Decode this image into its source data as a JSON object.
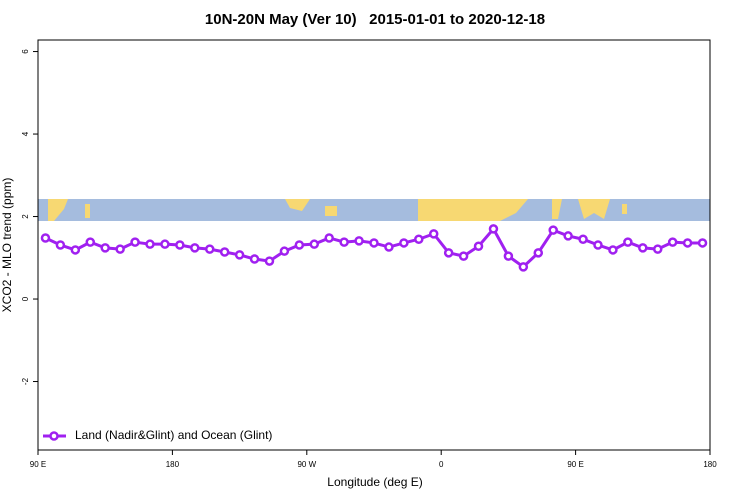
{
  "chart_data": {
    "type": "line",
    "title": "10N-20N May (Ver 10)   2015-01-01 to 2020-12-18",
    "x_label": "Longitude (deg E)",
    "y_label": "XCO2 - MLO trend (ppm)",
    "xlim": [
      90,
      540
    ],
    "ylim": [
      -3.66,
      6.28
    ],
    "xticks": [
      {
        "value": 90,
        "label": "90 E"
      },
      180,
      {
        "value": 270,
        "label": "90 W"
      },
      {
        "value": 360,
        "label": "0"
      },
      {
        "value": 450,
        "label": "90 E"
      },
      {
        "value": 540,
        "label": "180"
      }
    ],
    "yticks": [
      -2,
      0,
      2,
      4,
      6
    ],
    "legend": "bottom-left",
    "x": [
      95,
      105,
      115,
      125,
      135,
      145,
      155,
      165,
      175,
      185,
      195,
      205,
      215,
      225,
      235,
      245,
      255,
      265,
      275,
      285,
      295,
      305,
      315,
      325,
      335,
      345,
      355,
      365,
      375,
      385,
      395,
      405,
      415,
      425,
      435,
      445,
      455,
      465,
      475,
      485,
      495,
      505,
      515,
      525,
      535
    ],
    "series": [
      {
        "name": "Land (Nadir&Glint) and Ocean (Glint)",
        "color": "#a020f0",
        "values": [
          1.48,
          1.31,
          1.19,
          1.38,
          1.24,
          1.21,
          1.38,
          1.33,
          1.33,
          1.31,
          1.24,
          1.21,
          1.14,
          1.07,
          0.97,
          0.92,
          1.16,
          1.31,
          1.33,
          1.48,
          1.38,
          1.41,
          1.36,
          1.26,
          1.36,
          1.45,
          1.58,
          1.12,
          1.04,
          1.28,
          1.7,
          1.04,
          0.78,
          1.12,
          1.67,
          1.53,
          1.45,
          1.31,
          1.19,
          1.38,
          1.24,
          1.21,
          1.38,
          1.36,
          1.36
        ]
      }
    ]
  }
}
